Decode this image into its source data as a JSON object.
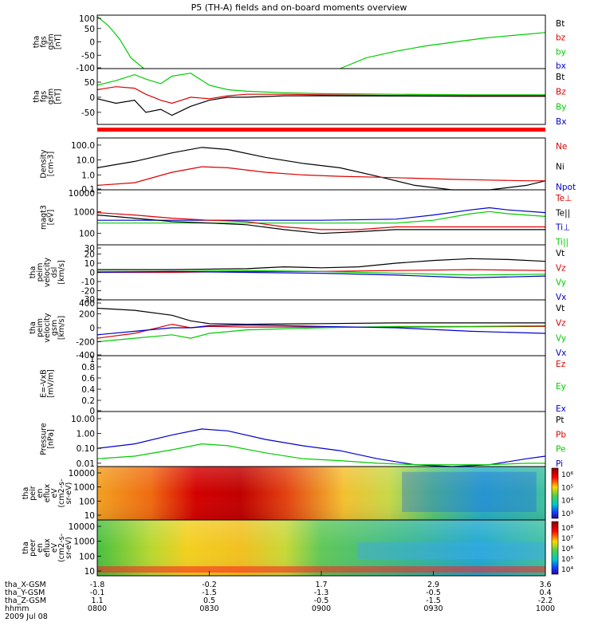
{
  "title": "P5 (TH-A) fields and on-board moments overview",
  "chart_data": [
    {
      "type": "line",
      "ylabel": [
        "tha",
        "fgs",
        "gsm",
        "[nT]"
      ],
      "yticks": [
        100,
        50,
        0,
        -50,
        -100
      ],
      "ylim": [
        -100,
        100
      ],
      "legend": [
        {
          "name": "Bt",
          "color": "#000000"
        },
        {
          "name": "bz",
          "color": "#dd0000"
        },
        {
          "name": "by",
          "color": "#00cc00"
        },
        {
          "name": "bx",
          "color": "#0000cc"
        }
      ],
      "series": [
        {
          "name": "by",
          "color": "#00cc00",
          "x": [
            0,
            3,
            6,
            9,
            12.5
          ],
          "y": [
            95,
            60,
            10,
            -60,
            -100
          ]
        },
        {
          "name": "by",
          "color": "#00cc00",
          "x": [
            65,
            72,
            80,
            88,
            96,
            104,
            112,
            120
          ],
          "y": [
            -100,
            -60,
            -35,
            -15,
            0,
            15,
            25,
            35
          ]
        }
      ]
    },
    {
      "type": "line",
      "ylabel": [
        "tha",
        "fgs",
        "gsm",
        "[nT]"
      ],
      "yticks": [
        50,
        0,
        -50
      ],
      "ylim": [
        -90,
        95
      ],
      "legend": [
        {
          "name": "Bt",
          "color": "#000000"
        },
        {
          "name": "Bz",
          "color": "#dd0000"
        },
        {
          "name": "By",
          "color": "#00cc00"
        },
        {
          "name": "Bx",
          "color": "#0000cc"
        }
      ],
      "series": [
        {
          "name": "Bt",
          "color": "#00cc00",
          "x": [
            0,
            5,
            10,
            13,
            17,
            20,
            25,
            30,
            35,
            40,
            50,
            60,
            80,
            100,
            120
          ],
          "y": [
            40,
            55,
            75,
            60,
            45,
            70,
            80,
            40,
            25,
            20,
            15,
            12,
            10,
            8,
            8
          ]
        },
        {
          "name": "Bz",
          "color": "#dd0000",
          "x": [
            0,
            5,
            10,
            13,
            17,
            20,
            25,
            30,
            35,
            40,
            50,
            60,
            80,
            100,
            120
          ],
          "y": [
            25,
            35,
            30,
            10,
            -10,
            -20,
            0,
            -5,
            5,
            10,
            10,
            8,
            6,
            5,
            5
          ]
        },
        {
          "name": "Bx",
          "color": "#000000",
          "x": [
            0,
            5,
            10,
            13,
            17,
            20,
            25,
            30,
            35,
            40,
            50,
            60,
            80,
            100,
            120
          ],
          "y": [
            -5,
            -20,
            -10,
            -50,
            -40,
            -60,
            -30,
            -10,
            0,
            0,
            5,
            5,
            4,
            3,
            3
          ]
        }
      ]
    },
    {
      "type": "line",
      "ylabel": [
        "Density",
        "[cm-3]"
      ],
      "yticks": [
        "100.0",
        "10.0",
        "1.0",
        "0.1"
      ],
      "log": true,
      "ylim": [
        0.1,
        300
      ],
      "legend": [
        {
          "name": "Ne",
          "color": "#dd0000"
        },
        {
          "name": "Ni",
          "color": "#000000"
        },
        {
          "name": "Npot",
          "color": "#0000cc"
        }
      ],
      "series": [
        {
          "name": "Ni",
          "color": "#000000",
          "x": [
            0,
            10,
            20,
            28,
            35,
            45,
            55,
            65,
            75,
            85,
            95,
            105,
            115,
            120
          ],
          "y": [
            3,
            8,
            30,
            70,
            50,
            15,
            6,
            3,
            0.8,
            0.2,
            0.1,
            0.1,
            0.2,
            0.4
          ]
        },
        {
          "name": "Ne",
          "color": "#dd0000",
          "x": [
            0,
            10,
            20,
            28,
            35,
            45,
            55,
            65,
            75,
            85,
            95,
            105,
            115,
            120
          ],
          "y": [
            0.2,
            0.3,
            1.5,
            3.5,
            3,
            1.5,
            1,
            0.8,
            0.7,
            0.6,
            0.5,
            0.45,
            0.4,
            0.4
          ]
        }
      ]
    },
    {
      "type": "line",
      "ylabel": [
        "magt3",
        "[eV]"
      ],
      "yticks": [
        10000,
        1000,
        100
      ],
      "log": true,
      "ylim": [
        30,
        10000
      ],
      "legend": [
        {
          "name": "Te⊥",
          "color": "#dd0000"
        },
        {
          "name": "Te||",
          "color": "#000000"
        },
        {
          "name": "Ti⊥",
          "color": "#0000cc"
        },
        {
          "name": "Ti||",
          "color": "#00cc00"
        }
      ],
      "series": [
        {
          "name": "Ti⊥",
          "color": "#0000cc",
          "x": [
            0,
            20,
            40,
            60,
            80,
            90,
            100,
            105,
            110,
            120
          ],
          "y": [
            400,
            400,
            400,
            400,
            450,
            700,
            1200,
            1500,
            1200,
            900
          ]
        },
        {
          "name": "Ti||",
          "color": "#00cc00",
          "x": [
            0,
            20,
            40,
            60,
            80,
            90,
            100,
            105,
            110,
            120
          ],
          "y": [
            300,
            300,
            300,
            300,
            300,
            400,
            800,
            1000,
            800,
            600
          ]
        },
        {
          "name": "Te||",
          "color": "#000000",
          "x": [
            0,
            10,
            20,
            30,
            40,
            50,
            60,
            70,
            80,
            100,
            120
          ],
          "y": [
            700,
            500,
            350,
            300,
            250,
            150,
            100,
            120,
            150,
            150,
            150
          ]
        },
        {
          "name": "Te⊥",
          "color": "#dd0000",
          "x": [
            0,
            10,
            20,
            30,
            40,
            50,
            60,
            70,
            80,
            100,
            120
          ],
          "y": [
            900,
            700,
            500,
            400,
            350,
            200,
            150,
            150,
            200,
            200,
            200
          ]
        }
      ]
    },
    {
      "type": "line",
      "ylabel": [
        "tha",
        "peim",
        "velocity",
        "dsl",
        "[km/s]"
      ],
      "yticks": [
        30,
        20,
        10,
        0,
        -10,
        -20,
        -30
      ],
      "ylim": [
        -30,
        30
      ],
      "legend": [
        {
          "name": "Vt",
          "color": "#000000"
        },
        {
          "name": "Vz",
          "color": "#dd0000"
        },
        {
          "name": "Vy",
          "color": "#00cc00"
        },
        {
          "name": "Vx",
          "color": "#0000cc"
        }
      ],
      "series": [
        {
          "name": "Vt",
          "color": "#000000",
          "x": [
            0,
            20,
            40,
            50,
            60,
            70,
            80,
            90,
            100,
            110,
            120
          ],
          "y": [
            3,
            3,
            4,
            6,
            5,
            6,
            10,
            13,
            15,
            14,
            12
          ]
        },
        {
          "name": "Vz",
          "color": "#dd0000",
          "x": [
            0,
            20,
            40,
            60,
            80,
            100,
            120
          ],
          "y": [
            0,
            0,
            1,
            1,
            2,
            3,
            2
          ]
        },
        {
          "name": "Vy",
          "color": "#00cc00",
          "x": [
            0,
            20,
            40,
            60,
            80,
            100,
            120
          ],
          "y": [
            1,
            1,
            2,
            1,
            -1,
            -3,
            -2
          ]
        },
        {
          "name": "Vx",
          "color": "#0000cc",
          "x": [
            0,
            20,
            40,
            60,
            80,
            100,
            120
          ],
          "y": [
            0,
            1,
            0,
            -1,
            -3,
            -6,
            -4
          ]
        }
      ]
    },
    {
      "type": "line",
      "ylabel": [
        "tha",
        "peim",
        "velocity",
        "gsm",
        "[km/s]"
      ],
      "yticks": [
        400,
        200,
        0,
        -200,
        -400
      ],
      "ylim": [
        -400,
        400
      ],
      "legend": [
        {
          "name": "Vt",
          "color": "#000000"
        },
        {
          "name": "Vz",
          "color": "#dd0000"
        },
        {
          "name": "Vy",
          "color": "#00cc00"
        },
        {
          "name": "Vx",
          "color": "#0000cc"
        }
      ],
      "series": [
        {
          "name": "Vt",
          "color": "#000000",
          "x": [
            0,
            10,
            20,
            25,
            30,
            40,
            60,
            80,
            100,
            120
          ],
          "y": [
            280,
            250,
            180,
            100,
            60,
            50,
            60,
            70,
            70,
            70
          ]
        },
        {
          "name": "Vz",
          "color": "#dd0000",
          "x": [
            0,
            10,
            20,
            25,
            30,
            40,
            60,
            80,
            100,
            120
          ],
          "y": [
            -150,
            -80,
            50,
            0,
            20,
            10,
            10,
            10,
            15,
            20
          ]
        },
        {
          "name": "Vy",
          "color": "#00cc00",
          "x": [
            0,
            10,
            20,
            25,
            30,
            40,
            60,
            80,
            100,
            120
          ],
          "y": [
            -200,
            -150,
            -100,
            -150,
            -80,
            -30,
            0,
            20,
            20,
            30
          ]
        },
        {
          "name": "Vx",
          "color": "#0000cc",
          "x": [
            0,
            10,
            20,
            25,
            30,
            40,
            60,
            80,
            100,
            120
          ],
          "y": [
            -100,
            -50,
            0,
            0,
            30,
            40,
            20,
            0,
            -50,
            -80
          ]
        }
      ]
    },
    {
      "type": "line",
      "ylabel": [
        "E=-VxB",
        "[mV/m]"
      ],
      "yticks": [
        1.0,
        0.8,
        0.6,
        0.4,
        0.2,
        0.0
      ],
      "ylim": [
        0,
        1
      ],
      "legend": [
        {
          "name": "Ez",
          "color": "#dd0000"
        },
        {
          "name": "Ey",
          "color": "#00cc00"
        },
        {
          "name": "Ex",
          "color": "#0000cc"
        }
      ],
      "series": []
    },
    {
      "type": "line",
      "ylabel": [
        "Pressure",
        "[nPa]"
      ],
      "yticks": [
        "10.00",
        "1.00",
        "0.10",
        "0.01"
      ],
      "log": true,
      "ylim": [
        0.006,
        30
      ],
      "legend": [
        {
          "name": "Pt",
          "color": "#000000"
        },
        {
          "name": "Pb",
          "color": "#dd0000"
        },
        {
          "name": "Pe",
          "color": "#00cc00"
        },
        {
          "name": "Pi",
          "color": "#0000cc"
        }
      ],
      "series": [
        {
          "name": "Pi",
          "color": "#0000cc",
          "x": [
            0,
            10,
            20,
            28,
            35,
            45,
            55,
            65,
            75,
            85,
            95,
            105,
            115,
            120
          ],
          "y": [
            0.1,
            0.2,
            0.8,
            2,
            1.5,
            0.4,
            0.15,
            0.07,
            0.02,
            0.008,
            0.005,
            0.008,
            0.02,
            0.03
          ]
        },
        {
          "name": "Pe",
          "color": "#00cc00",
          "x": [
            0,
            10,
            20,
            28,
            35,
            45,
            55,
            65,
            75,
            85,
            95,
            105,
            115,
            120
          ],
          "y": [
            0.02,
            0.03,
            0.08,
            0.2,
            0.15,
            0.05,
            0.02,
            0.015,
            0.01,
            0.008,
            0.008,
            0.008,
            0.01,
            0.01
          ]
        }
      ]
    },
    {
      "type": "heatmap",
      "ylabel": [
        "tha",
        "peir",
        "en",
        "eflux",
        "eV",
        "(cm2-s-",
        "sr-eV)"
      ],
      "yticks": [
        10000,
        1000,
        100,
        10
      ],
      "colorbar": {
        "ticks": [
          "10⁶",
          "10⁵",
          "10⁴",
          "10³"
        ]
      }
    },
    {
      "type": "heatmap",
      "ylabel": [
        "tha",
        "peer",
        "en",
        "eflux",
        "eV",
        "(cm2-s-",
        "sr-eV)"
      ],
      "yticks": [
        10000,
        1000,
        100,
        10
      ],
      "colorbar": {
        "ticks": [
          "10⁸",
          "10⁷",
          "10⁶",
          "10⁵",
          "10⁴"
        ]
      }
    }
  ],
  "xaxis": {
    "rows": [
      {
        "label": "tha_X-GSM",
        "values": [
          "-1.8",
          "-0.2",
          "1.7",
          "2.9",
          "3.6"
        ]
      },
      {
        "label": "tha_Y-GSM",
        "values": [
          "-0.1",
          "-1.5",
          "-1.3",
          "-0.5",
          "0.4"
        ]
      },
      {
        "label": "tha_Z-GSM",
        "values": [
          "1.1",
          "0.5",
          "-0.5",
          "-1.5",
          "-2.2"
        ]
      },
      {
        "label": "hhmm",
        "values": [
          "0800",
          "0830",
          "0900",
          "0930",
          "1000"
        ]
      }
    ],
    "date": "2009 Jul 08",
    "tick_minutes": [
      0,
      30,
      60,
      90,
      120
    ]
  }
}
